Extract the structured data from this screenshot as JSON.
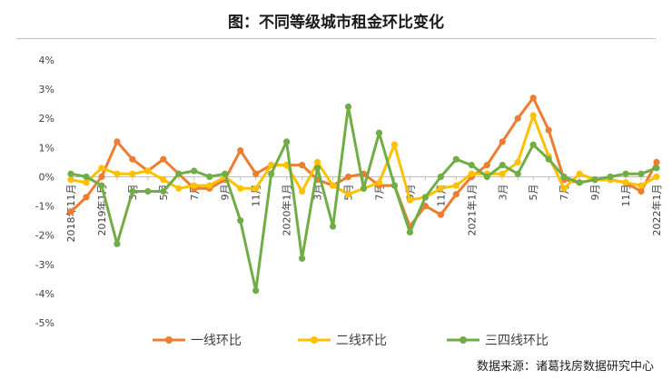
{
  "chart_data": {
    "type": "line",
    "title": "图：不同等级城市租金环比变化",
    "source": "数据来源：诸葛找房数据研究中心",
    "xlabel": "",
    "ylabel": "",
    "ylim": [
      -5,
      4
    ],
    "yticks": [
      "4%",
      "3%",
      "2%",
      "1%",
      "0%",
      "-1%",
      "-2%",
      "-3%",
      "-4%",
      "-5%"
    ],
    "x": [
      "2018年11月",
      "12月",
      "2019年1月",
      "2月",
      "3月",
      "4月",
      "5月",
      "6月",
      "7月",
      "8月",
      "9月",
      "10月",
      "11月",
      "12月",
      "2020年1月",
      "2月",
      "3月",
      "4月",
      "5月",
      "6月",
      "7月",
      "8月",
      "9月",
      "10月",
      "11月",
      "12月",
      "2021年1月",
      "2月",
      "3月",
      "4月",
      "5月",
      "6月",
      "7月",
      "8月",
      "9月",
      "10月",
      "11月",
      "12月",
      "2022年1月"
    ],
    "x_tick_labels": [
      {
        "index": 0,
        "label": "2018年11月"
      },
      {
        "index": 2,
        "label": "2019年1月"
      },
      {
        "index": 4,
        "label": "3月"
      },
      {
        "index": 6,
        "label": "5月"
      },
      {
        "index": 8,
        "label": "7月"
      },
      {
        "index": 10,
        "label": "9月"
      },
      {
        "index": 12,
        "label": "11月"
      },
      {
        "index": 14,
        "label": "2020年1月"
      },
      {
        "index": 16,
        "label": "3月"
      },
      {
        "index": 18,
        "label": "5月"
      },
      {
        "index": 20,
        "label": "7月"
      },
      {
        "index": 22,
        "label": "9月"
      },
      {
        "index": 24,
        "label": "11月"
      },
      {
        "index": 26,
        "label": "2021年1月"
      },
      {
        "index": 28,
        "label": "3月"
      },
      {
        "index": 30,
        "label": "5月"
      },
      {
        "index": 32,
        "label": "7月"
      },
      {
        "index": 34,
        "label": "9月"
      },
      {
        "index": 36,
        "label": "11月"
      },
      {
        "index": 38,
        "label": "2022年1月"
      }
    ],
    "series": [
      {
        "name": "一线环比",
        "color": "#ED7D31",
        "values": [
          -1.2,
          -0.7,
          0.0,
          1.2,
          0.6,
          0.2,
          0.6,
          0.1,
          -0.4,
          -0.4,
          -0.1,
          0.9,
          0.1,
          0.4,
          0.4,
          0.4,
          -0.1,
          -0.3,
          0.0,
          0.1,
          -0.3,
          -0.3,
          -1.7,
          -1.0,
          -1.3,
          -0.6,
          0.0,
          0.4,
          1.2,
          2.0,
          2.7,
          1.6,
          -0.1,
          -0.2,
          -0.1,
          -0.1,
          -0.2,
          -0.5,
          0.5
        ]
      },
      {
        "name": "二线环比",
        "color": "#FFC000",
        "values": [
          -0.1,
          -0.2,
          0.3,
          0.1,
          0.1,
          0.2,
          -0.1,
          -0.4,
          -0.3,
          -0.3,
          0.0,
          -0.4,
          -0.4,
          0.4,
          0.4,
          -0.5,
          0.5,
          -0.3,
          -0.6,
          -0.4,
          -0.2,
          1.1,
          -0.8,
          -0.7,
          -0.4,
          -0.3,
          0.1,
          0.1,
          0.1,
          0.5,
          2.1,
          0.7,
          -0.4,
          0.1,
          -0.1,
          -0.1,
          -0.2,
          -0.3,
          0.0
        ]
      },
      {
        "name": "三四线环比",
        "color": "#70AD47",
        "values": [
          0.1,
          0.0,
          -0.3,
          -2.3,
          -0.5,
          -0.5,
          -0.5,
          0.1,
          0.2,
          0.0,
          0.1,
          -1.5,
          -3.9,
          0.1,
          1.2,
          -2.8,
          0.3,
          -1.7,
          2.4,
          -0.4,
          1.5,
          -0.3,
          -1.9,
          -0.7,
          0.0,
          0.6,
          0.4,
          0.0,
          0.4,
          0.1,
          1.1,
          0.6,
          0.0,
          -0.2,
          -0.1,
          0.0,
          0.1,
          0.1,
          0.3
        ]
      }
    ],
    "grid": false,
    "legend": "bottom"
  }
}
